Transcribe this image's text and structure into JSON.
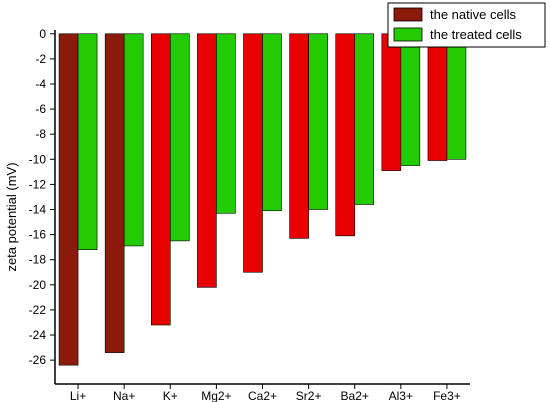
{
  "chart_data": {
    "type": "bar",
    "categories": [
      "Li+",
      "Na+",
      "K+",
      "Mg2+",
      "Ca2+",
      "Sr2+",
      "Ba2+",
      "Al3+",
      "Fe3+"
    ],
    "series": [
      {
        "name": "the native cells",
        "values": [
          -26.4,
          -25.4,
          -23.2,
          -20.2,
          -19.0,
          -16.3,
          -16.1,
          -10.9,
          -10.1
        ],
        "colors": [
          "#8b1a0a",
          "#8b1a0a",
          "#e60000",
          "#e60000",
          "#e60000",
          "#e60000",
          "#e60000",
          "#e60000",
          "#e60000"
        ]
      },
      {
        "name": "the treated cells",
        "values": [
          -17.2,
          -16.9,
          -16.5,
          -14.3,
          -14.1,
          -14.0,
          -13.6,
          -10.5,
          -10.0
        ],
        "colors": [
          "#22cc00",
          "#22cc00",
          "#22cc00",
          "#22cc00",
          "#22cc00",
          "#22cc00",
          "#22cc00",
          "#22cc00",
          "#22cc00"
        ]
      }
    ],
    "ylabel": "zeta potential (mV)",
    "xlabel": "",
    "ylim": [
      -27.9,
      0.3
    ],
    "yticks": [
      0,
      -2,
      -4,
      -6,
      -8,
      -10,
      -12,
      -14,
      -16,
      -18,
      -20,
      -22,
      -24,
      -26
    ],
    "grid": false,
    "legend_position": "top-right",
    "legend_colors": [
      "#8b1a0a",
      "#22cc00"
    ]
  }
}
